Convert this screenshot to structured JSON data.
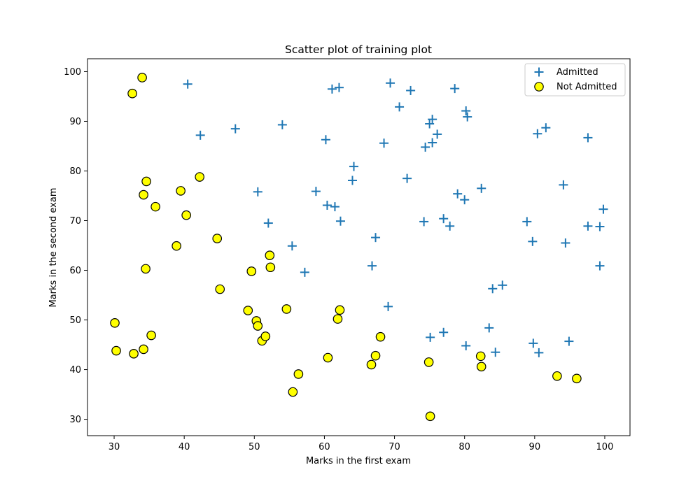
{
  "chart_data": {
    "type": "scatter",
    "title": "Scatter plot of training plot",
    "xlabel": "Marks in the first exam",
    "ylabel": "Marks in the second exam",
    "xlim": [
      26.2,
      103.6
    ],
    "ylim": [
      26.7,
      102.6
    ],
    "xticks": [
      30,
      40,
      50,
      60,
      70,
      80,
      90,
      100
    ],
    "yticks": [
      30,
      40,
      50,
      60,
      70,
      80,
      90,
      100
    ],
    "grid": false,
    "legend_position": "top-right",
    "series": [
      {
        "name": "Admitted",
        "marker": "plus",
        "color": "#1f77b4",
        "points": [
          [
            40.5,
            97.5
          ],
          [
            42.3,
            87.2
          ],
          [
            47.3,
            88.5
          ],
          [
            54.0,
            89.3
          ],
          [
            60.2,
            86.3
          ],
          [
            61.1,
            96.5
          ],
          [
            62.1,
            96.8
          ],
          [
            69.4,
            97.7
          ],
          [
            72.3,
            96.2
          ],
          [
            78.6,
            96.6
          ],
          [
            70.7,
            92.9
          ],
          [
            75.0,
            89.5
          ],
          [
            75.4,
            90.4
          ],
          [
            80.2,
            92.1
          ],
          [
            80.4,
            90.9
          ],
          [
            74.4,
            84.8
          ],
          [
            75.4,
            85.7
          ],
          [
            76.1,
            87.4
          ],
          [
            68.5,
            85.6
          ],
          [
            90.4,
            87.5
          ],
          [
            91.6,
            88.7
          ],
          [
            97.6,
            86.7
          ],
          [
            64.2,
            80.9
          ],
          [
            64.0,
            78.1
          ],
          [
            71.8,
            78.5
          ],
          [
            50.5,
            75.8
          ],
          [
            58.8,
            75.9
          ],
          [
            60.4,
            73.1
          ],
          [
            61.5,
            72.8
          ],
          [
            62.3,
            69.9
          ],
          [
            52.0,
            69.5
          ],
          [
            67.3,
            66.6
          ],
          [
            74.2,
            69.8
          ],
          [
            77.0,
            70.4
          ],
          [
            77.9,
            68.9
          ],
          [
            79.0,
            75.4
          ],
          [
            80.0,
            74.2
          ],
          [
            82.4,
            76.5
          ],
          [
            94.1,
            77.2
          ],
          [
            99.8,
            72.3
          ],
          [
            88.9,
            69.8
          ],
          [
            97.6,
            68.9
          ],
          [
            99.3,
            68.8
          ],
          [
            89.7,
            65.8
          ],
          [
            94.4,
            65.5
          ],
          [
            55.4,
            64.9
          ],
          [
            57.2,
            59.6
          ],
          [
            66.8,
            60.9
          ],
          [
            99.3,
            60.9
          ],
          [
            84.0,
            56.3
          ],
          [
            85.4,
            57.0
          ],
          [
            69.1,
            52.7
          ],
          [
            83.5,
            48.4
          ],
          [
            75.1,
            46.5
          ],
          [
            77.0,
            47.5
          ],
          [
            80.2,
            44.8
          ],
          [
            84.4,
            43.5
          ],
          [
            89.8,
            45.3
          ],
          [
            90.6,
            43.4
          ],
          [
            94.9,
            45.7
          ]
        ]
      },
      {
        "name": "Not Admitted",
        "marker": "circle",
        "color": "#ffff00",
        "edge_color": "#000000",
        "points": [
          [
            34.0,
            98.8
          ],
          [
            32.6,
            95.6
          ],
          [
            42.2,
            78.8
          ],
          [
            34.6,
            77.9
          ],
          [
            34.2,
            75.2
          ],
          [
            39.5,
            76.0
          ],
          [
            35.9,
            72.8
          ],
          [
            40.3,
            71.1
          ],
          [
            38.9,
            64.9
          ],
          [
            44.7,
            66.4
          ],
          [
            34.5,
            60.3
          ],
          [
            45.1,
            56.2
          ],
          [
            52.2,
            63.0
          ],
          [
            52.3,
            60.6
          ],
          [
            49.6,
            59.8
          ],
          [
            30.1,
            49.4
          ],
          [
            35.3,
            46.9
          ],
          [
            30.3,
            43.8
          ],
          [
            32.8,
            43.2
          ],
          [
            34.2,
            44.1
          ],
          [
            49.1,
            51.9
          ],
          [
            50.3,
            49.8
          ],
          [
            50.5,
            48.8
          ],
          [
            51.1,
            45.8
          ],
          [
            51.6,
            46.7
          ],
          [
            54.6,
            52.2
          ],
          [
            56.3,
            39.1
          ],
          [
            55.5,
            35.5
          ],
          [
            60.5,
            42.4
          ],
          [
            61.9,
            50.2
          ],
          [
            62.2,
            52.0
          ],
          [
            66.7,
            41.0
          ],
          [
            67.3,
            42.8
          ],
          [
            68.0,
            46.6
          ],
          [
            74.9,
            41.5
          ],
          [
            75.1,
            30.6
          ],
          [
            82.3,
            42.7
          ],
          [
            82.4,
            40.6
          ],
          [
            93.2,
            38.7
          ],
          [
            96.0,
            38.2
          ]
        ]
      }
    ]
  }
}
